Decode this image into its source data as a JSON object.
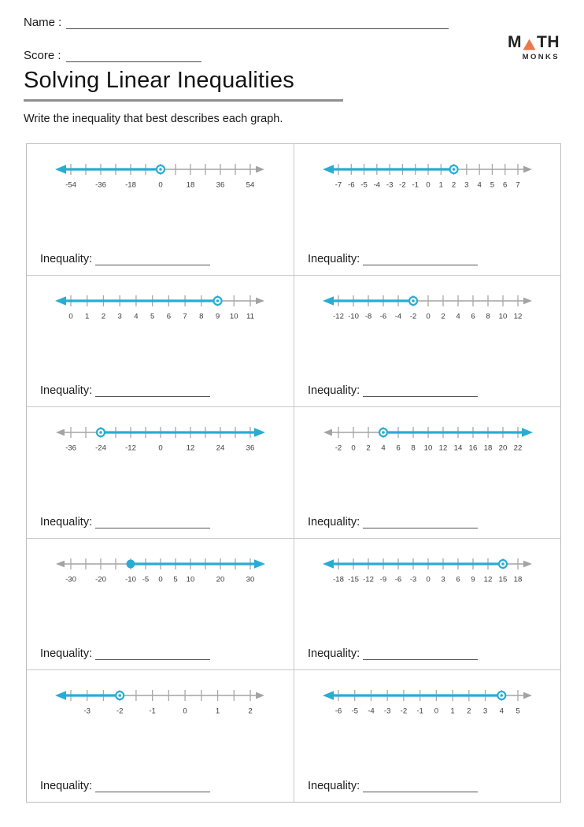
{
  "page": {
    "name_label": "Name :",
    "score_label": "Score :",
    "title": "Solving Linear Inequalities",
    "instruction": "Write the inequality that best describes each graph.",
    "inequality_label": "Inequality:"
  },
  "logo": {
    "word_top_left": "M",
    "word_top_right": "TH",
    "word_bottom": "MONKS",
    "triangle_color": "#E8794E"
  },
  "colors": {
    "ray_blue": "#29ACD4",
    "axis_gray": "#A3A3A3",
    "tick_gray": "#A8A8A8",
    "label_gray": "#3C3C3C"
  },
  "chart_data": [
    {
      "type": "number_line",
      "tick_min": -54,
      "tick_max": 54,
      "tick_step": 9,
      "labels": [
        -54,
        -36,
        -18,
        0,
        18,
        36,
        54
      ],
      "point": 0,
      "point_style": "open",
      "ray": "left"
    },
    {
      "type": "number_line",
      "tick_min": -7,
      "tick_max": 7,
      "tick_step": 1,
      "labels": [
        -7,
        -6,
        -5,
        -4,
        -3,
        -2,
        -1,
        0,
        1,
        2,
        3,
        4,
        5,
        6,
        7
      ],
      "point": 2,
      "point_style": "open",
      "ray": "left"
    },
    {
      "type": "number_line",
      "tick_min": 0,
      "tick_max": 11,
      "tick_step": 1,
      "labels": [
        0,
        1,
        2,
        3,
        4,
        5,
        6,
        7,
        8,
        9,
        10,
        11
      ],
      "point": 9,
      "point_style": "open",
      "ray": "left"
    },
    {
      "type": "number_line",
      "tick_min": -12,
      "tick_max": 12,
      "tick_step": 2,
      "labels": [
        -12,
        -10,
        -8,
        -6,
        -4,
        -2,
        0,
        2,
        4,
        6,
        8,
        10,
        12
      ],
      "point": -2,
      "point_style": "open",
      "ray": "left"
    },
    {
      "type": "number_line",
      "tick_min": -36,
      "tick_max": 36,
      "tick_step": 6,
      "labels": [
        -36,
        -24,
        -12,
        0,
        12,
        24,
        36
      ],
      "point": -24,
      "point_style": "open",
      "ray": "right"
    },
    {
      "type": "number_line",
      "tick_min": -2,
      "tick_max": 22,
      "tick_step": 2,
      "labels": [
        -2,
        0,
        2,
        4,
        6,
        8,
        10,
        12,
        14,
        16,
        18,
        20,
        22
      ],
      "point": 4,
      "point_style": "open",
      "ray": "right"
    },
    {
      "type": "number_line",
      "tick_min": -30,
      "tick_max": 30,
      "tick_step": 5,
      "labels": [
        -30,
        -20,
        -10,
        -5,
        0,
        5,
        10,
        20,
        30
      ],
      "point": -10,
      "point_style": "closed",
      "ray": "right"
    },
    {
      "type": "number_line",
      "tick_min": -18,
      "tick_max": 18,
      "tick_step": 3,
      "labels": [
        -18,
        -15,
        -12,
        -9,
        -6,
        -3,
        0,
        3,
        6,
        9,
        12,
        15,
        18
      ],
      "point": 15,
      "point_style": "open",
      "ray": "left"
    },
    {
      "type": "number_line",
      "tick_min": -3.5,
      "tick_max": 2,
      "tick_step": 0.5,
      "labels": [
        -3,
        -2,
        -1,
        0,
        1,
        2
      ],
      "point": -2,
      "point_style": "open",
      "ray": "left"
    },
    {
      "type": "number_line",
      "tick_min": -6,
      "tick_max": 5,
      "tick_step": 1,
      "labels": [
        -6,
        -5,
        -4,
        -3,
        -2,
        -1,
        0,
        1,
        2,
        3,
        4,
        5
      ],
      "point": 4,
      "point_style": "open",
      "ray": "left"
    }
  ]
}
